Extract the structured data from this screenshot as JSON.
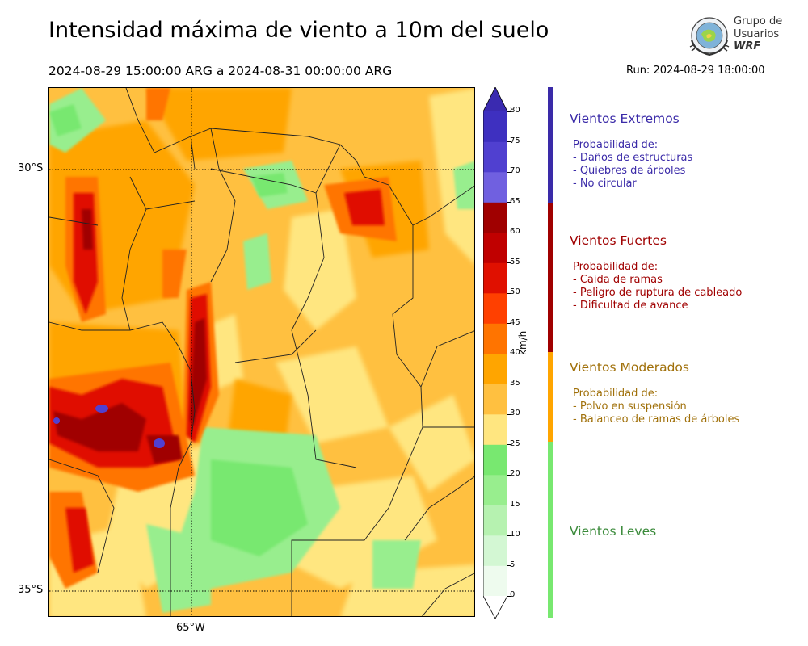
{
  "header": {
    "title": "Intensidad máxima de viento a 10m del suelo",
    "period": "2024-08-29 15:00:00 ARG  a  2024-08-31 00:00:00 ARG",
    "run": "Run: 2024-08-29 18:00:00"
  },
  "logo": {
    "line1": "Grupo de",
    "line2": "Usuarios",
    "line3": "WRF"
  },
  "map": {
    "lat_labels": [
      "30°S",
      "35°S"
    ],
    "lon_labels": [
      "65°W"
    ]
  },
  "colorbar": {
    "unit": "km/h",
    "ticks": [
      "0",
      "5",
      "10",
      "15",
      "20",
      "25",
      "30",
      "35",
      "40",
      "45",
      "50",
      "55",
      "60",
      "65",
      "70",
      "75",
      "80"
    ],
    "colors": [
      "#eefbee",
      "#d3f7d3",
      "#b6f2b0",
      "#98ee8e",
      "#78e870",
      "#ffe680",
      "#ffc040",
      "#ffa500",
      "#ff7400",
      "#ff4000",
      "#e01000",
      "#c00000",
      "#a00000",
      "#7060e0",
      "#5040d0",
      "#3e30c0"
    ],
    "over_color": "#3a2ab0",
    "under_color": "#ffffff"
  },
  "categories": [
    {
      "title": "Vientos Extremos",
      "color": "#3a2aa8",
      "bar_color": "#3a2aa8",
      "lines": [
        "Probabilidad de:",
        "- Daños de estructuras",
        "- Quiebres de árboles",
        "- No circular"
      ]
    },
    {
      "title": "Vientos Fuertes",
      "color": "#a00000",
      "bar_color": "#a00000",
      "lines": [
        "Probabilidad de:",
        "- Caida de ramas",
        "- Peligro de ruptura de cableado",
        "- Dificultad de avance"
      ]
    },
    {
      "title": "Vientos Moderados",
      "color": "#a0700a",
      "bar_color": "#ffa500",
      "lines": [
        "Probabilidad de:",
        "- Polvo en suspensión",
        "- Balanceo de ramas de árboles"
      ]
    },
    {
      "title": "Vientos Leves",
      "color": "#3a8a3a",
      "bar_color": "#78e870",
      "lines": []
    }
  ]
}
